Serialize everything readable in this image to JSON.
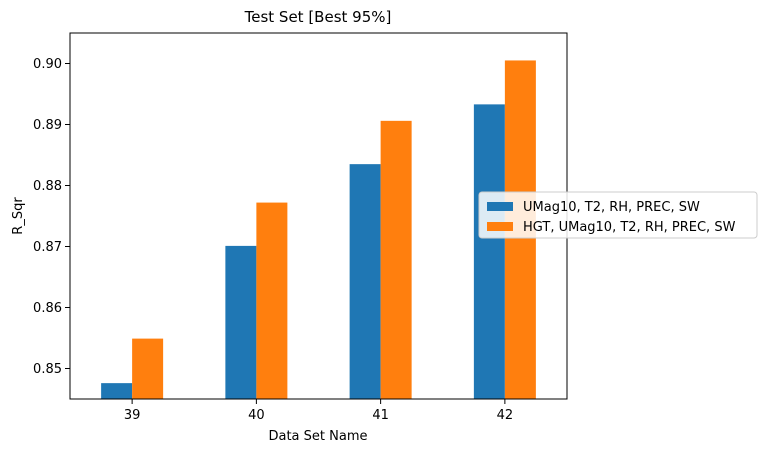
{
  "chart_data": {
    "type": "bar",
    "title": "Test Set [Best 95%]",
    "xlabel": "Data Set Name",
    "ylabel": "R_Sqr",
    "categories": [
      "39",
      "40",
      "41",
      "42"
    ],
    "ylim": [
      0.845,
      0.905
    ],
    "yticks": [
      "0.85",
      "0.86",
      "0.87",
      "0.88",
      "0.89",
      "0.90"
    ],
    "yticks_values": [
      0.85,
      0.86,
      0.87,
      0.88,
      0.89,
      0.9
    ],
    "legend_position": "center-right",
    "grid": false,
    "series": [
      {
        "name": "UMag10, T2, RH, PREC, SW",
        "color": "#1f77b4",
        "values": [
          0.8476,
          0.8701,
          0.8835,
          0.8933
        ]
      },
      {
        "name": "HGT, UMag10, T2, RH, PREC, SW",
        "color": "#ff7f0e",
        "values": [
          0.8549,
          0.8772,
          0.8906,
          0.9005
        ]
      }
    ]
  }
}
